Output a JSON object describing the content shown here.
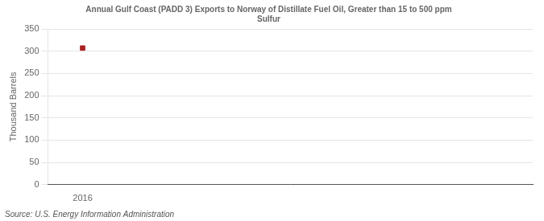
{
  "chart_data": {
    "type": "scatter",
    "title": "Annual Gulf Coast (PADD 3) Exports to Norway of Distillate Fuel Oil, Greater than 15 to 500 ppm\nSulfur",
    "ylabel": "Thousand Barrels",
    "annotations": [
      "Source: U.S. Energy Information Administration"
    ],
    "x": [
      2016
    ],
    "values": [
      307
    ],
    "color": "#aa2222",
    "marker": "square",
    "xlim": [
      2015.5,
      2022.5
    ],
    "xticks": [
      2016
    ],
    "ylim": [
      0,
      350
    ],
    "yticks": [
      0,
      50,
      100,
      150,
      200,
      250,
      300,
      350
    ],
    "grid": true
  }
}
